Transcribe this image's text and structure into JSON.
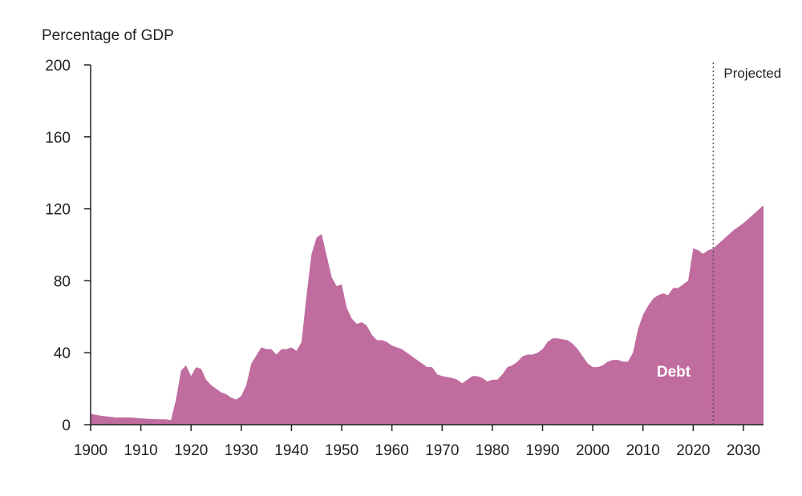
{
  "chart_data": {
    "type": "area",
    "ylabel": "Percentage of GDP",
    "xlabel": "",
    "xlim": [
      1900,
      2034
    ],
    "ylim": [
      0,
      200
    ],
    "x_ticks": [
      1900,
      1910,
      1920,
      1930,
      1940,
      1950,
      1960,
      1970,
      1980,
      1990,
      2000,
      2010,
      2020,
      2030
    ],
    "y_ticks": [
      0,
      40,
      80,
      120,
      160,
      200
    ],
    "grid": false,
    "annotations": [
      {
        "text": "Projected",
        "x": 2024,
        "style": "dotted-vertical-line"
      }
    ],
    "colors": {
      "area": "#c06c9e",
      "axis": "#222222",
      "divider": "#555555"
    },
    "series": [
      {
        "name": "Debt",
        "x": [
          1900,
          1902,
          1905,
          1908,
          1910,
          1913,
          1915,
          1916,
          1917,
          1918,
          1919,
          1920,
          1921,
          1922,
          1923,
          1924,
          1926,
          1927,
          1928,
          1929,
          1930,
          1931,
          1932,
          1934,
          1935,
          1936,
          1937,
          1938,
          1939,
          1940,
          1941,
          1942,
          1943,
          1944,
          1945,
          1946,
          1947,
          1948,
          1949,
          1950,
          1951,
          1952,
          1953,
          1954,
          1955,
          1956,
          1957,
          1958,
          1959,
          1960,
          1962,
          1963,
          1964,
          1966,
          1967,
          1968,
          1969,
          1970,
          1972,
          1973,
          1974,
          1975,
          1976,
          1977,
          1978,
          1979,
          1980,
          1981,
          1982,
          1983,
          1984,
          1985,
          1986,
          1987,
          1988,
          1989,
          1990,
          1991,
          1992,
          1993,
          1995,
          1996,
          1997,
          1998,
          1999,
          2000,
          2001,
          2002,
          2003,
          2004,
          2005,
          2006,
          2007,
          2008,
          2009,
          2010,
          2011,
          2012,
          2013,
          2014,
          2015,
          2016,
          2017,
          2018,
          2019,
          2020,
          2021,
          2022,
          2023,
          2024,
          2026,
          2028,
          2030,
          2032,
          2034
        ],
        "values": [
          6,
          5,
          4,
          4,
          3.5,
          3,
          3,
          2.5,
          14,
          30,
          33,
          27,
          32,
          31,
          25,
          22,
          18,
          17,
          15,
          14,
          16,
          22,
          34,
          43,
          42,
          42,
          39,
          42,
          42,
          43,
          41,
          46,
          72,
          95,
          104,
          106,
          94,
          82,
          77,
          78,
          65,
          59,
          56,
          57,
          55,
          50,
          47,
          47,
          46,
          44,
          42,
          40,
          38,
          34,
          32,
          32,
          28,
          27,
          26,
          25,
          23,
          25,
          27,
          27,
          26,
          24,
          25,
          25,
          28,
          32,
          33,
          35,
          38,
          39,
          39,
          40,
          42,
          46,
          48,
          48,
          47,
          45,
          42,
          38,
          34,
          32,
          32,
          33,
          35,
          36,
          36,
          35,
          35,
          40,
          53,
          61,
          66,
          70,
          72,
          73,
          72,
          76,
          76,
          78,
          80,
          98,
          97,
          95,
          97,
          98,
          103,
          108,
          112,
          117,
          122
        ]
      }
    ]
  }
}
